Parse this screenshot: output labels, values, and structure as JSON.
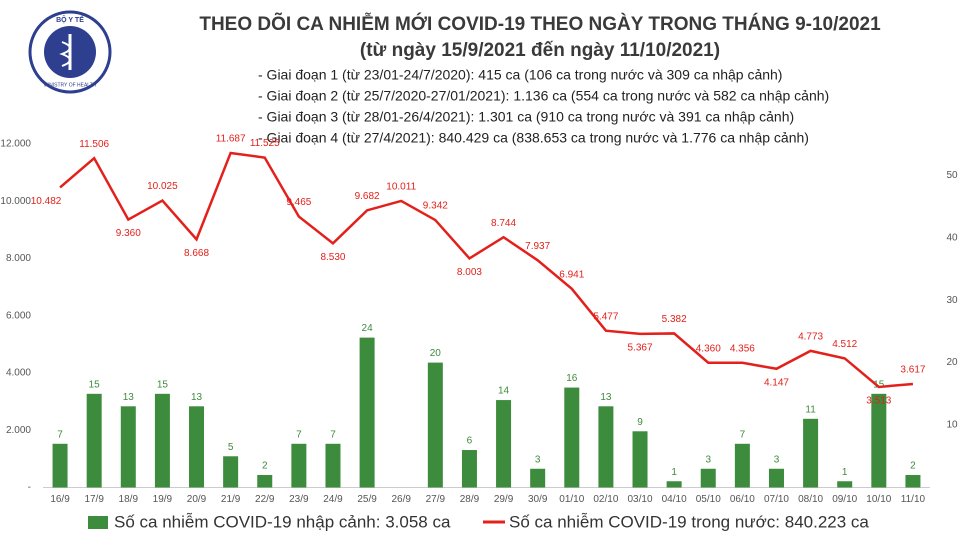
{
  "header": {
    "logo_top": "BỘ Y TẾ",
    "logo_bottom": "MINISTRY OF HEALTH",
    "notes": [
      "- Giai đoạn 1 (từ 23/01-24/7/2020): 415 ca (106 ca trong nước và 309 ca nhập cảnh)",
      "- Giai đoạn 2 (từ 25/7/2020-27/01/2021): 1.136 ca (554 ca trong nước và 582 ca nhập cảnh)",
      "- Giai đoạn 3 (từ 28/01-26/4/2021): 1.301 ca (910 ca trong nước và 391 ca nhập cảnh)",
      "- Giai đoạn 4 (từ 27/4/2021): 840.429 ca (838.653 ca trong nước và 1.776 ca nhập cảnh)"
    ]
  },
  "chart_data": {
    "type": "bar-line",
    "title": "THEO DÕI CA NHIỄM MỚI COVID-19 THEO NGÀY TRONG THÁNG 9-10/2021",
    "subtitle": "(từ ngày 15/9/2021 đến ngày 11/10/2021)",
    "categories": [
      "16/9",
      "17/9",
      "18/9",
      "19/9",
      "20/9",
      "21/9",
      "22/9",
      "23/9",
      "24/9",
      "25/9",
      "26/9",
      "27/9",
      "28/9",
      "29/9",
      "30/9",
      "01/10",
      "02/10",
      "03/10",
      "04/10",
      "05/10",
      "06/10",
      "07/10",
      "08/10",
      "09/10",
      "10/10",
      "11/10"
    ],
    "series": [
      {
        "name": "Số ca nhiễm COVID-19 nhập cảnh: 3.058 ca",
        "kind": "bar",
        "axis": "y2",
        "color": "#3d8b3d",
        "values": [
          7,
          15,
          13,
          15,
          13,
          5,
          2,
          7,
          7,
          24,
          null,
          20,
          6,
          14,
          3,
          16,
          13,
          9,
          1,
          3,
          7,
          3,
          11,
          1,
          15,
          2
        ]
      },
      {
        "name": "Số ca nhiễm COVID-19 trong nước: 840.223 ca",
        "kind": "line",
        "axis": "y",
        "color": "#e3201b",
        "values": [
          10482,
          11506,
          9360,
          10025,
          8668,
          11687,
          11525,
          9465,
          8530,
          9682,
          10011,
          9342,
          8003,
          8744,
          7937,
          6941,
          5477,
          5367,
          5382,
          4360,
          4356,
          4147,
          4773,
          4512,
          3513,
          3617
        ],
        "value_labels": [
          "10.482",
          "11.506",
          "9.360",
          "10.025",
          "8.668",
          "11.687",
          "11.525",
          "9.465",
          "8.530",
          "9.682",
          "10.011",
          "9.342",
          "8.003",
          "8.744",
          "7.937",
          "6.941",
          "5.477",
          "5.367",
          "5.382",
          "4.360",
          "4.356",
          "4.147",
          "4.773",
          "4.512",
          "3.513",
          "3.617"
        ]
      }
    ],
    "ylim": [
      0,
      12000
    ],
    "yticks": [
      {
        "value": 0,
        "label": "-"
      },
      {
        "value": 2000,
        "label": "2.000"
      },
      {
        "value": 4000,
        "label": "4.000"
      },
      {
        "value": 6000,
        "label": "6.000"
      },
      {
        "value": 8000,
        "label": "8.000"
      },
      {
        "value": 10000,
        "label": "10.000"
      },
      {
        "value": 12000,
        "label": "12.000"
      }
    ],
    "y2lim": [
      0,
      55
    ],
    "y2ticks": [
      10,
      20,
      30,
      40,
      50
    ]
  }
}
